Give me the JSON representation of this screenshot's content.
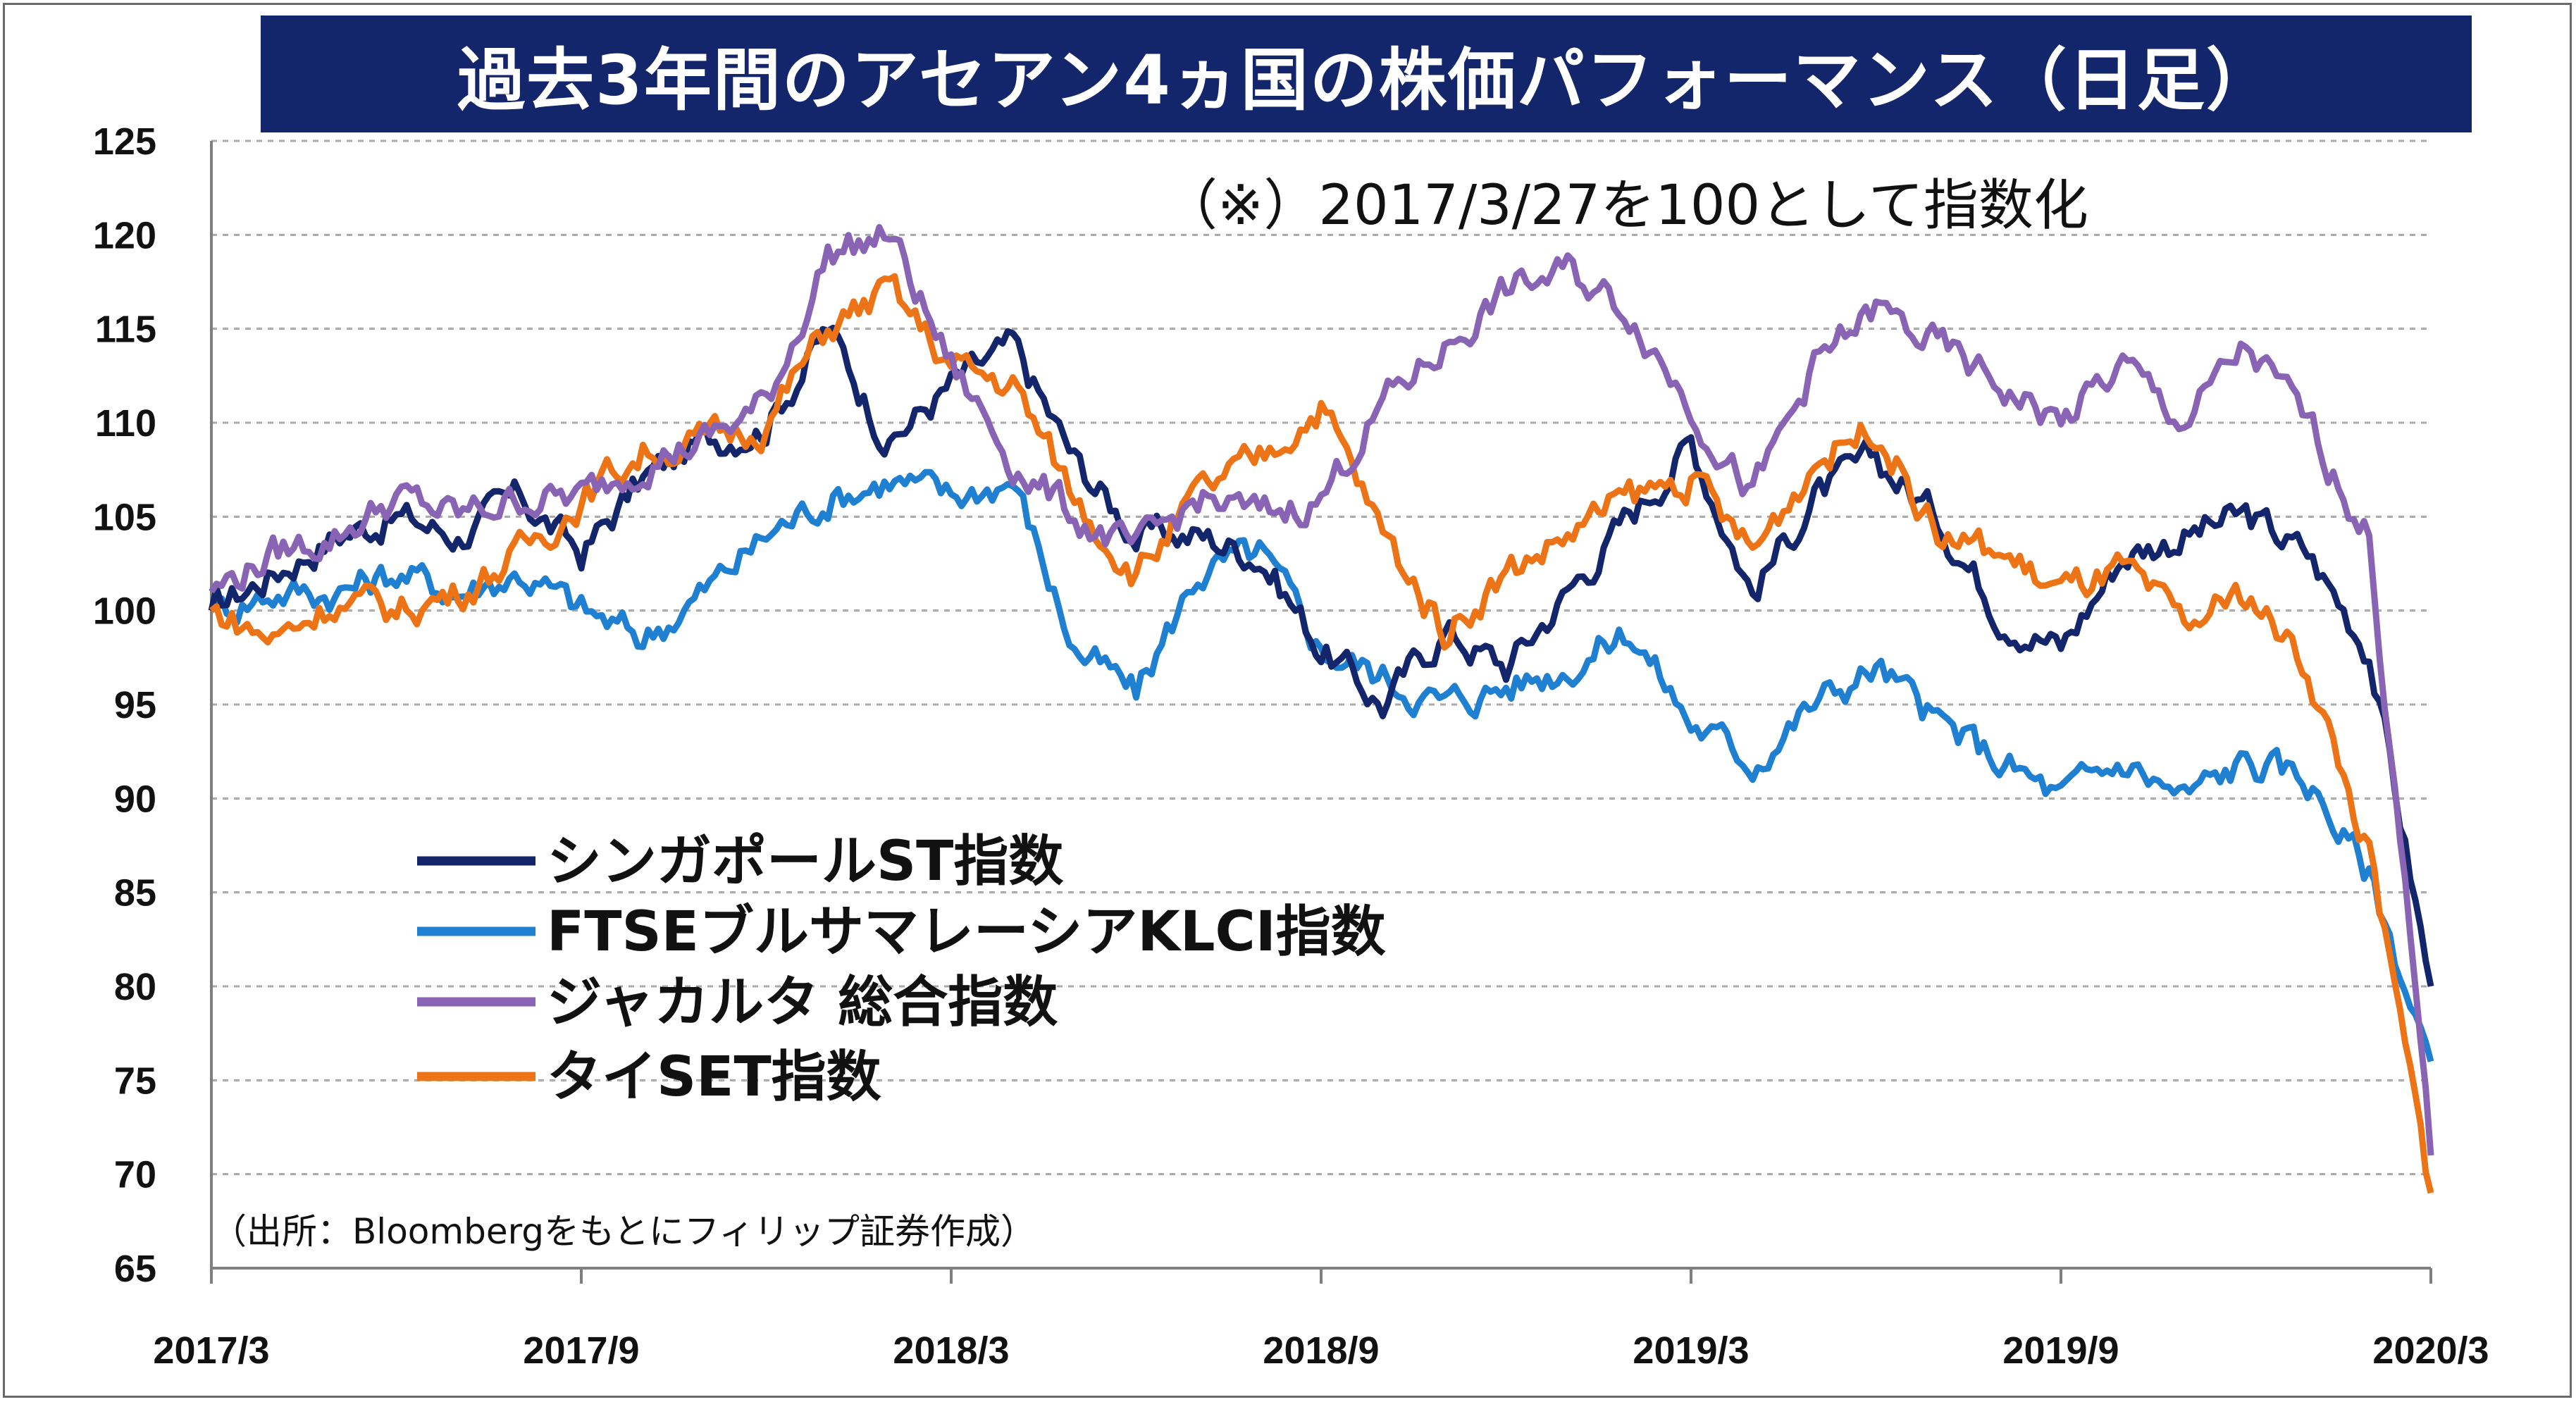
{
  "title": "過去3年間のアセアン4ヵ国の株価パフォーマンス（日足）",
  "note": "（※）2017/3/27を100として指数化",
  "source": "（出所：Bloombergをもとにフィリップ証券作成）",
  "colors": {
    "title_bg": "#14266b",
    "grid": "#a8a8a8",
    "axis": "#7f7f7f"
  },
  "chart_data": {
    "type": "line",
    "title": "過去3年間のアセアン4ヵ国の株価パフォーマンス（日足）",
    "xlabel": "",
    "ylabel": "",
    "x_tick_labels": [
      "2017/3",
      "2017/9",
      "2018/3",
      "2018/9",
      "2019/3",
      "2019/9",
      "2020/3"
    ],
    "y_tick_labels": [
      "125",
      "120",
      "115",
      "110",
      "105",
      "100",
      "95",
      "90",
      "85",
      "80",
      "75",
      "70",
      "65"
    ],
    "ylim": [
      65,
      125
    ],
    "xlim": [
      "2017/3",
      "2020/3"
    ],
    "grid": "horizontal dashed",
    "legend_position": "left-center",
    "x_dates": [
      "2017/3",
      "2017/4",
      "2017/5",
      "2017/6",
      "2017/7",
      "2017/8",
      "2017/9",
      "2017/10",
      "2017/11",
      "2017/12",
      "2018/1",
      "2018/2",
      "2018/3",
      "2018/4",
      "2018/5",
      "2018/6",
      "2018/7",
      "2018/8",
      "2018/9",
      "2018/10",
      "2018/11",
      "2018/12",
      "2019/1",
      "2019/2",
      "2019/3",
      "2019/4",
      "2019/5",
      "2019/6",
      "2019/7",
      "2019/8",
      "2019/9",
      "2019/10",
      "2019/11",
      "2019/12",
      "2020/1",
      "2020/2",
      "2020/3"
    ],
    "series": [
      {
        "name": "シンガポールST指数",
        "color": "#14266b",
        "values": [
          100,
          102,
          104,
          105,
          104,
          106,
          103,
          107,
          109,
          110,
          115,
          109,
          112,
          114,
          108,
          104,
          104,
          103,
          98,
          95,
          99,
          97,
          101,
          105,
          109,
          101,
          106,
          108,
          105,
          100,
          98,
          103,
          104,
          105,
          103,
          98,
          80
        ]
      },
      {
        "name": "FTSEブルサマレーシアKLCI指数",
        "color": "#1f7fd1",
        "values": [
          100,
          101,
          101,
          102,
          101,
          102,
          100,
          98.5,
          101,
          104,
          106,
          107,
          106,
          107,
          98,
          95.5,
          102,
          103,
          98,
          96.5,
          95,
          96,
          97,
          99,
          94,
          92,
          95,
          97,
          94,
          92,
          90,
          92,
          90,
          92,
          91,
          86,
          76
        ]
      },
      {
        "name": "ジャカルタ 総合指数",
        "color": "#8a64b4",
        "values": [
          101,
          103,
          104,
          106,
          105,
          106,
          106,
          108,
          109,
          111,
          119,
          120,
          113,
          108,
          105,
          103,
          106,
          105,
          106,
          111,
          114,
          117,
          118,
          116,
          111,
          106,
          113,
          116,
          114,
          112,
          110,
          113,
          110,
          114,
          110,
          104,
          71
        ]
      },
      {
        "name": "タイSET指数",
        "color": "#ed7317",
        "values": [
          100,
          98.5,
          100.5,
          100,
          101,
          103,
          106,
          108.5,
          109,
          110,
          115,
          117,
          113,
          112,
          106,
          102,
          106,
          108,
          111,
          104,
          99,
          102,
          104,
          106,
          107,
          103,
          108,
          110,
          104,
          103,
          101,
          102,
          99,
          101,
          97,
          87,
          69
        ]
      }
    ]
  }
}
